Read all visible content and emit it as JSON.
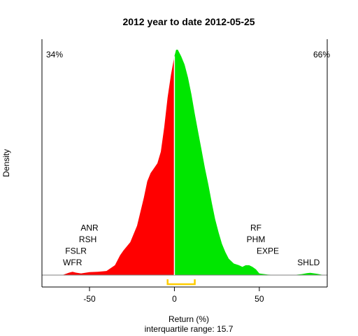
{
  "chart_data": {
    "type": "area",
    "title": "2012  year to date 2012-05-25",
    "xlabel": "Return (%)",
    "subtitle": "interquartile range: 15.7",
    "ylabel": "Density",
    "xlim": [
      -78,
      90
    ],
    "xticks": [
      -50,
      0,
      50
    ],
    "pct_negative": "34%",
    "pct_positive": "66%",
    "colors": {
      "negative": "#ff0000",
      "positive": "#00e600",
      "iqr": "#ffcc00",
      "axis": "#808080",
      "neg_label": "#ff0000",
      "pos_label": "#009900"
    },
    "iqr": {
      "q1": -4,
      "q3": 12
    },
    "density": {
      "x": [
        -66,
        -62,
        -60,
        -58,
        -55,
        -50,
        -45,
        -40,
        -35,
        -32,
        -30,
        -26,
        -22,
        -18,
        -16,
        -14,
        -12,
        -10,
        -8,
        -6,
        -4,
        -2,
        0,
        1,
        2,
        4,
        6,
        8,
        10,
        12,
        14,
        16,
        18,
        20,
        22,
        24,
        26,
        28,
        30,
        32,
        35,
        38,
        40,
        42,
        44,
        46,
        48,
        50,
        55,
        60,
        70,
        75,
        78,
        80,
        84,
        88
      ],
      "y": [
        0,
        0.015,
        0.02,
        0.015,
        0.01,
        0.018,
        0.02,
        0.025,
        0.06,
        0.12,
        0.15,
        0.2,
        0.3,
        0.47,
        0.57,
        0.62,
        0.65,
        0.68,
        0.75,
        0.9,
        1.08,
        1.22,
        1.33,
        1.37,
        1.37,
        1.33,
        1.28,
        1.2,
        1.1,
        0.98,
        0.87,
        0.76,
        0.65,
        0.55,
        0.44,
        0.34,
        0.26,
        0.19,
        0.14,
        0.1,
        0.07,
        0.06,
        0.05,
        0.06,
        0.06,
        0.05,
        0.035,
        0.01,
        0.003,
        0,
        0,
        0.006,
        0.012,
        0.014,
        0.008,
        0
      ]
    },
    "annotations": [
      {
        "text": "ANR",
        "x": -50,
        "y": 0.27
      },
      {
        "text": "RSH",
        "x": -51,
        "y": 0.2
      },
      {
        "text": "FSLR",
        "x": -58,
        "y": 0.13
      },
      {
        "text": "WFR",
        "x": -60,
        "y": 0.06
      },
      {
        "text": "RF",
        "x": 48,
        "y": 0.27
      },
      {
        "text": "PHM",
        "x": 48,
        "y": 0.2
      },
      {
        "text": "EXPE",
        "x": 55,
        "y": 0.13
      },
      {
        "text": "SHLD",
        "x": 79,
        "y": 0.06
      }
    ]
  }
}
